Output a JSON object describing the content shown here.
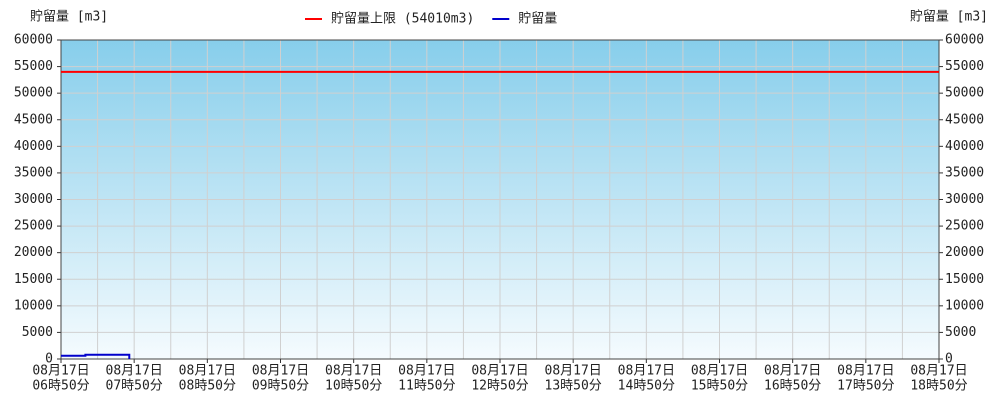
{
  "chart_data": {
    "type": "line",
    "y_label": "貯留量 [m3]",
    "y2_label": "貯留量 [m3]",
    "categories": [
      [
        "08月17日",
        "06時50分"
      ],
      [
        "08月17日",
        "07時50分"
      ],
      [
        "08月17日",
        "08時50分"
      ],
      [
        "08月17日",
        "09時50分"
      ],
      [
        "08月17日",
        "10時50分"
      ],
      [
        "08月17日",
        "11時50分"
      ],
      [
        "08月17日",
        "12時50分"
      ],
      [
        "08月17日",
        "13時50分"
      ],
      [
        "08月17日",
        "14時50分"
      ],
      [
        "08月17日",
        "15時50分"
      ],
      [
        "08月17日",
        "16時50分"
      ],
      [
        "08月17日",
        "17時50分"
      ],
      [
        "08月17日",
        "18時50分"
      ]
    ],
    "ylim": [
      0,
      60000
    ],
    "yticks": [
      0,
      5000,
      10000,
      15000,
      20000,
      25000,
      30000,
      35000,
      40000,
      45000,
      50000,
      55000,
      60000
    ],
    "y2lim": [
      0,
      60000
    ],
    "y2ticks": [
      0,
      5000,
      10000,
      15000,
      20000,
      25000,
      30000,
      35000,
      40000,
      45000,
      50000,
      55000,
      60000
    ],
    "grid": true,
    "series": [
      {
        "name": "貯留量上限 (54010m3)",
        "color": "#ff0000",
        "x": [
          "06時50分",
          "18時50分"
        ],
        "values": [
          54010,
          54010
        ]
      },
      {
        "name": "貯留量",
        "color": "#0000cc",
        "x": [
          "06時50分",
          "07時10分",
          "07時10分",
          "07時46分",
          "07時46分"
        ],
        "values": [
          600,
          600,
          800,
          800,
          0
        ]
      }
    ]
  }
}
